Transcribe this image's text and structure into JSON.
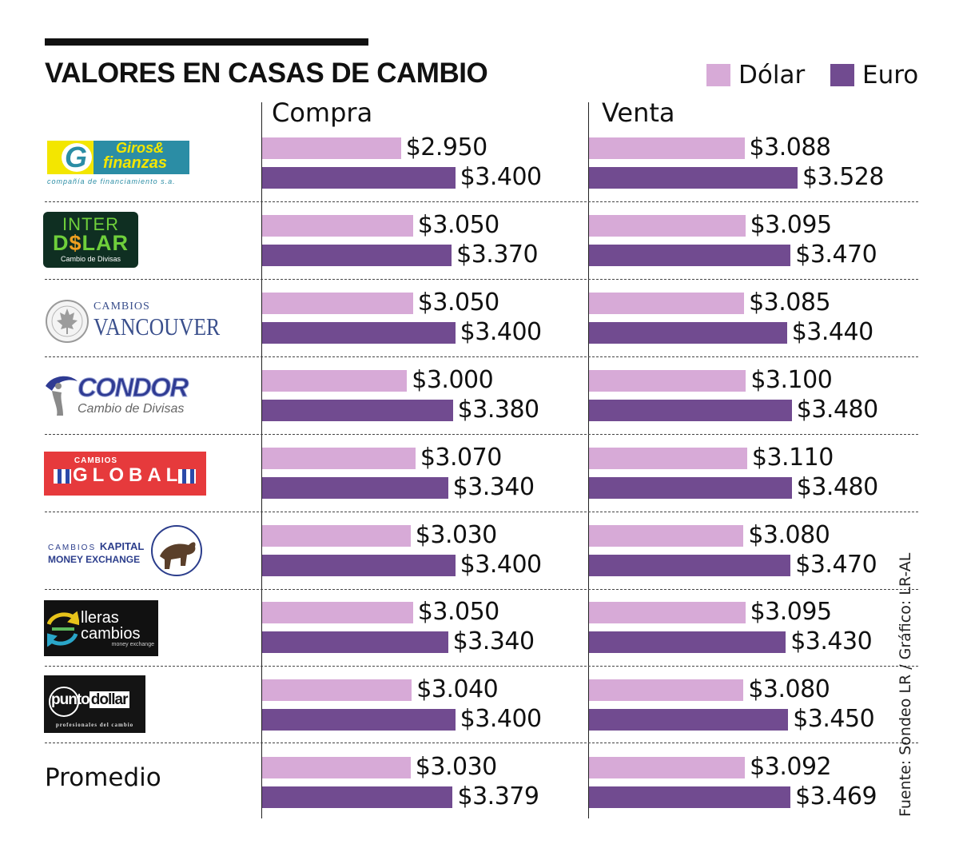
{
  "title": "VALORES EN CASAS DE CAMBIO",
  "legend": [
    {
      "label": "Dólar",
      "color": "#d7aad7"
    },
    {
      "label": "Euro",
      "color": "#714b90"
    }
  ],
  "columns": {
    "compra": "Compra",
    "venta": "Venta"
  },
  "source": "Fuente: Sondeo LR / Gráfico: LR-AL",
  "average_label": "Promedio",
  "logos": {
    "giros": {
      "line1": "Giros&",
      "line2": "finanzas",
      "tagline": "compañía de financiamiento s.a."
    },
    "interdolar": {
      "line1": "INTER",
      "line2a": "D",
      "line2b": "$",
      "line2c": "LAR",
      "tagline": "Cambio de Divisas"
    },
    "vancouver": {
      "line1": "CAMBIOS",
      "line2": "VANCOUVER"
    },
    "condor": {
      "line1": "CONDOR",
      "line2": "Cambio de Divisas"
    },
    "global": {
      "line1": "CAMBIOS",
      "line2": "GLOBAL"
    },
    "kapital": {
      "line1a": "CAMBIOS",
      "line1b": "KAPITAL",
      "line2": "MONEY EXCHANGE"
    },
    "lleras": {
      "line1": "lleras",
      "line2": "cambios",
      "tagline": "money exchange"
    },
    "puntodollar": {
      "line1a": "punto",
      "line1b": "dollar",
      "tagline": "profesionales del cambio"
    }
  },
  "chart_data": {
    "type": "bar",
    "orientation": "horizontal",
    "title": "VALORES EN CASAS DE CAMBIO",
    "panels": [
      "Compra",
      "Venta"
    ],
    "categories": [
      "Giros & Finanzas",
      "Inter Dólar",
      "Cambios Vancouver",
      "Condor",
      "Cambios Global",
      "Cambios Kapital",
      "Lleras Cambios",
      "Punto Dollar",
      "Promedio"
    ],
    "series": [
      {
        "name": "Dólar",
        "panel": "Compra",
        "values": [
          2950,
          3050,
          3050,
          3000,
          3070,
          3030,
          3050,
          3040,
          3030
        ],
        "labels": [
          "$2.950",
          "$3.050",
          "$3.050",
          "$3.000",
          "$3.070",
          "$3.030",
          "$3.050",
          "$3.040",
          "$3.030"
        ]
      },
      {
        "name": "Euro",
        "panel": "Compra",
        "values": [
          3400,
          3370,
          3400,
          3380,
          3340,
          3400,
          3340,
          3400,
          3379
        ],
        "labels": [
          "$3.400",
          "$3.370",
          "$3.400",
          "$3.380",
          "$3.340",
          "$3.400",
          "$3.340",
          "$3.400",
          "$3.379"
        ]
      },
      {
        "name": "Dólar",
        "panel": "Venta",
        "values": [
          3088,
          3095,
          3085,
          3100,
          3110,
          3080,
          3095,
          3080,
          3092
        ],
        "labels": [
          "$3.088",
          "$3.095",
          "$3.085",
          "$3.100",
          "$3.110",
          "$3.080",
          "$3.095",
          "$3.080",
          "$3.092"
        ]
      },
      {
        "name": "Euro",
        "panel": "Venta",
        "values": [
          3528,
          3470,
          3440,
          3480,
          3480,
          3470,
          3430,
          3450,
          3469
        ],
        "labels": [
          "$3.528",
          "$3.470",
          "$3.440",
          "$3.480",
          "$3.480",
          "$3.470",
          "$3.430",
          "$3.450",
          "$3.469"
        ]
      }
    ],
    "xlim": [
      1800,
      3600
    ]
  }
}
